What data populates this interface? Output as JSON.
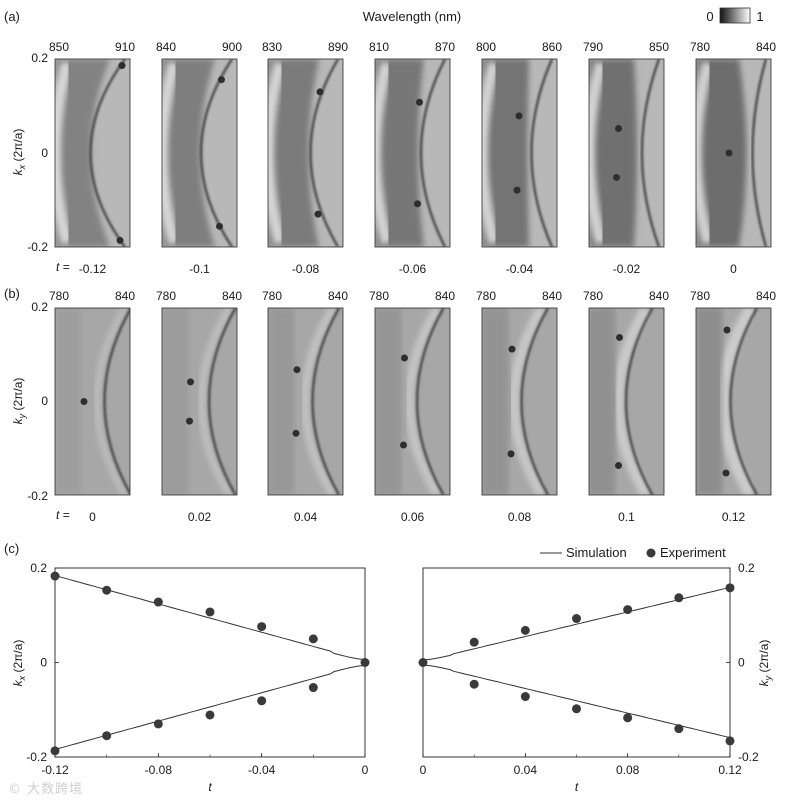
{
  "panel_labels": {
    "a": "(a)",
    "b": "(b)",
    "c": "(c)"
  },
  "colorbar": {
    "min_label": "0",
    "max_label": "1"
  },
  "row_a": {
    "top_axis_title": "Wavelength (nm)",
    "y_label": "k",
    "y_sub": "x",
    "y_unit": " (2π/a)",
    "y_ticks": [
      "0.2",
      "0",
      "-0.2"
    ],
    "t_prefix": "t =",
    "panels": [
      {
        "t": "-0.12",
        "ticks": [
          "850",
          "910"
        ],
        "k": 0.186
      },
      {
        "t": "-0.1",
        "ticks": [
          "840",
          "900"
        ],
        "k": 0.156
      },
      {
        "t": "-0.08",
        "ticks": [
          "830",
          "890"
        ],
        "k": 0.13
      },
      {
        "t": "-0.06",
        "ticks": [
          "810",
          "870"
        ],
        "k": 0.108
      },
      {
        "t": "-0.04",
        "ticks": [
          "800",
          "860"
        ],
        "k": 0.079
      },
      {
        "t": "-0.02",
        "ticks": [
          "790",
          "850"
        ],
        "k": 0.052
      },
      {
        "t": "0",
        "ticks": [
          "780",
          "840"
        ],
        "k": 0.0
      }
    ]
  },
  "row_b": {
    "y_label": "k",
    "y_sub": "y",
    "y_unit": " (2π/a)",
    "y_ticks": [
      "0.2",
      "0",
      "-0.2"
    ],
    "t_prefix": "t =",
    "panels": [
      {
        "t": "0",
        "ticks": [
          "780",
          "840"
        ],
        "k": 0.0
      },
      {
        "t": "0.02",
        "ticks": [
          "780",
          "840"
        ],
        "k": 0.042
      },
      {
        "t": "0.04",
        "ticks": [
          "780",
          "840"
        ],
        "k": 0.068
      },
      {
        "t": "0.06",
        "ticks": [
          "780",
          "840"
        ],
        "k": 0.093
      },
      {
        "t": "0.08",
        "ticks": [
          "780",
          "840"
        ],
        "k": 0.112
      },
      {
        "t": "0.1",
        "ticks": [
          "780",
          "840"
        ],
        "k": 0.137
      },
      {
        "t": "0.12",
        "ticks": [
          "780",
          "840"
        ],
        "k": 0.153
      }
    ]
  },
  "legend": {
    "simulation": "Simulation",
    "experiment": "Experiment"
  },
  "chart_data": [
    {
      "type": "scatter",
      "xlabel": "t",
      "ylabel": "kx (2π/a)",
      "xlim": [
        -0.12,
        0
      ],
      "ylim": [
        -0.2,
        0.2
      ],
      "xticks": [
        "-0.12",
        "-0.08",
        "-0.04",
        "0"
      ],
      "yticks": [
        "0.2",
        "0",
        "-0.2"
      ],
      "series": [
        {
          "name": "Experiment",
          "x": [
            -0.12,
            -0.1,
            -0.08,
            -0.06,
            -0.04,
            -0.02,
            0,
            -0.12,
            -0.1,
            -0.08,
            -0.06,
            -0.04,
            -0.02
          ],
          "y": [
            0.183,
            0.153,
            0.128,
            0.107,
            0.076,
            0.05,
            0.0,
            -0.187,
            -0.155,
            -0.13,
            -0.111,
            -0.081,
            -0.053
          ]
        },
        {
          "name": "Simulation",
          "model": "±sqrt(t² + 0.0001)·1.5",
          "x": [
            -0.12,
            0
          ]
        }
      ]
    },
    {
      "type": "scatter",
      "xlabel": "t",
      "ylabel": "ky (2π/a)",
      "xlim": [
        0,
        0.12
      ],
      "ylim": [
        -0.2,
        0.2
      ],
      "xticks": [
        "0",
        "0.04",
        "0.08",
        "0.12"
      ],
      "yticks": [
        "0.2",
        "0",
        "-0.2"
      ],
      "series": [
        {
          "name": "Experiment",
          "x": [
            0,
            0.02,
            0.04,
            0.06,
            0.08,
            0.1,
            0.12,
            0.02,
            0.04,
            0.06,
            0.08,
            0.1,
            0.12
          ],
          "y": [
            0.0,
            0.043,
            0.068,
            0.093,
            0.112,
            0.137,
            0.158,
            -0.046,
            -0.072,
            -0.098,
            -0.117,
            -0.14,
            -0.166
          ]
        },
        {
          "name": "Simulation",
          "model": "±sqrt(t² + 0.0001)·1.3",
          "x": [
            0,
            0.12
          ]
        }
      ]
    }
  ]
}
